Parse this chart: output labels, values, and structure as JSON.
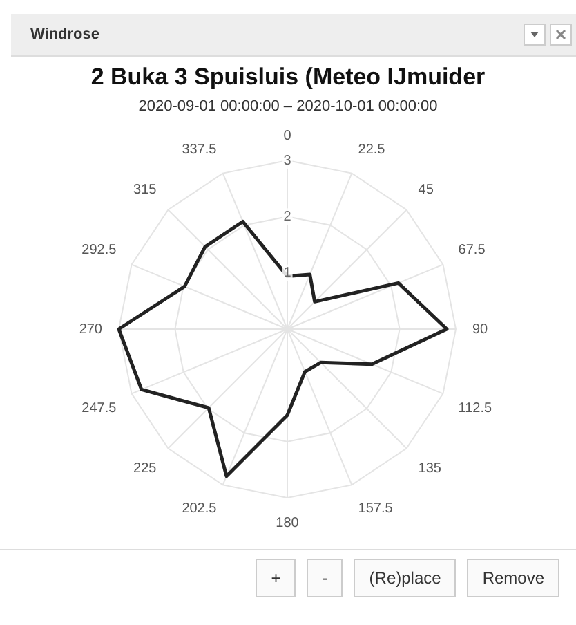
{
  "chart_data": {
    "type": "radar",
    "title": "2 Buka 3 Spuisluis (Meteo IJmuider",
    "subtitle": "2020-09-01 00:00:00 – 2020-10-01 00:00:00",
    "categories": [
      "0",
      "22.5",
      "45",
      "67.5",
      "90",
      "112.5",
      "135",
      "157.5",
      "180",
      "202.5",
      "225",
      "247.5",
      "270",
      "292.5",
      "315",
      "337.5"
    ],
    "series": [
      {
        "color": "#222222",
        "values": [
          0.94,
          1.05,
          0.69,
          2.14,
          2.84,
          1.63,
          0.84,
          0.82,
          1.53,
          2.83,
          1.98,
          2.81,
          3.0,
          1.98,
          2.07,
          2.07
        ]
      }
    ],
    "ylim": [
      0,
      3
    ],
    "yticks": [
      1,
      2,
      3
    ],
    "grid": true,
    "marker": "none",
    "annotations": [
      "Windrose",
      "+",
      "-",
      "(Re)place",
      "Remove"
    ]
  }
}
